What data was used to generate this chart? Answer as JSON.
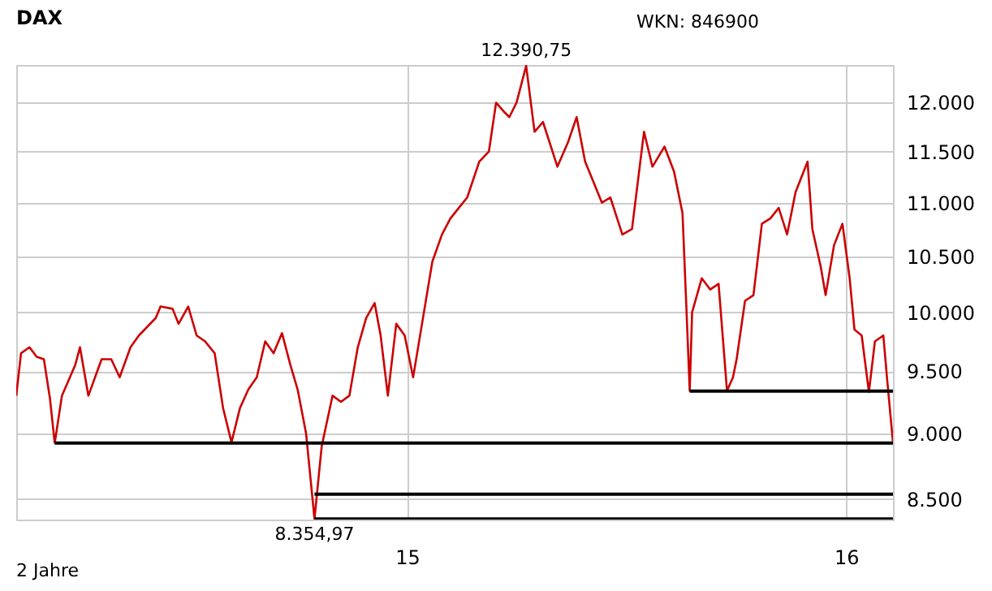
{
  "chart_data": {
    "type": "line",
    "title": "DAX",
    "annotations": [
      "WKN: 846900",
      "2 Jahre",
      {
        "text": "12.390,75",
        "x": "2015-04-10",
        "y": 12390.75
      },
      {
        "text": "8.354,97",
        "x": "2014-10-16",
        "y": 8354.97
      }
    ],
    "x": [
      "2014-02-10",
      "2014-02-14",
      "2014-02-21",
      "2014-02-27",
      "2014-03-05",
      "2014-03-10",
      "2014-03-14",
      "2014-03-20",
      "2014-03-31",
      "2014-04-04",
      "2014-04-11",
      "2014-04-22",
      "2014-04-30",
      "2014-05-07",
      "2014-05-16",
      "2014-05-23",
      "2014-06-06",
      "2014-06-10",
      "2014-06-20",
      "2014-06-25",
      "2014-07-03",
      "2014-07-10",
      "2014-07-17",
      "2014-07-25",
      "2014-08-01",
      "2014-08-08",
      "2014-08-15",
      "2014-08-22",
      "2014-08-29",
      "2014-09-05",
      "2014-09-12",
      "2014-09-19",
      "2014-09-26",
      "2014-10-02",
      "2014-10-09",
      "2014-10-16",
      "2014-10-22",
      "2014-10-31",
      "2014-11-07",
      "2014-11-14",
      "2014-11-21",
      "2014-11-28",
      "2014-12-05",
      "2014-12-10",
      "2014-12-16",
      "2014-12-23",
      "2014-12-30",
      "2015-01-06",
      "2015-01-15",
      "2015-01-22",
      "2015-01-30",
      "2015-02-06",
      "2015-02-13",
      "2015-02-20",
      "2015-03-02",
      "2015-03-10",
      "2015-03-16",
      "2015-03-23",
      "2015-03-27",
      "2015-04-02",
      "2015-04-10",
      "2015-04-17",
      "2015-04-24",
      "2015-05-06",
      "2015-05-15",
      "2015-05-22",
      "2015-05-29",
      "2015-06-05",
      "2015-06-12",
      "2015-06-19",
      "2015-06-29",
      "2015-07-07",
      "2015-07-17",
      "2015-07-24",
      "2015-08-03",
      "2015-08-11",
      "2015-08-18",
      "2015-08-21",
      "2015-08-24",
      "2015-08-26",
      "2015-09-03",
      "2015-09-10",
      "2015-09-17",
      "2015-09-24",
      "2015-09-29",
      "2015-10-02",
      "2015-10-09",
      "2015-10-16",
      "2015-10-23",
      "2015-10-30",
      "2015-11-06",
      "2015-11-13",
      "2015-11-20",
      "2015-11-30",
      "2015-12-04",
      "2015-12-11",
      "2015-12-15",
      "2015-12-22",
      "2015-12-29",
      "2016-01-04",
      "2016-01-08",
      "2016-01-14",
      "2016-01-20",
      "2016-01-25",
      "2016-02-01",
      "2016-02-04",
      "2016-02-09"
    ],
    "series": [
      {
        "color": "#cc0000",
        "values": [
          9300,
          9650,
          9700,
          9620,
          9600,
          9280,
          8925,
          9300,
          9550,
          9700,
          9300,
          9600,
          9600,
          9450,
          9700,
          9800,
          9950,
          10050,
          10030,
          9900,
          10050,
          9800,
          9750,
          9650,
          9200,
          8930,
          9200,
          9350,
          9450,
          9750,
          9650,
          9820,
          9550,
          9350,
          9000,
          8354.97,
          8900,
          9300,
          9250,
          9300,
          9700,
          9950,
          10080,
          9800,
          9300,
          9900,
          9800,
          9450,
          10000,
          10450,
          10700,
          10850,
          10950,
          11050,
          11400,
          11500,
          12000,
          11900,
          11850,
          12000,
          12390.75,
          11700,
          11800,
          11350,
          11600,
          11850,
          11400,
          11200,
          11000,
          11050,
          10700,
          10750,
          11700,
          11350,
          11550,
          11300,
          10900,
          10100,
          9340,
          10000,
          10300,
          10200,
          10250,
          9340,
          9450,
          9600,
          10100,
          10150,
          10800,
          10850,
          10950,
          10700,
          11100,
          11400,
          10750,
          10400,
          10150,
          10600,
          10800,
          10300,
          9850,
          9800,
          9330,
          9750,
          9800,
          9450,
          8930
        ]
      },
      {
        "type": "line",
        "color": "#000000",
        "x": [
          "2014-03-14",
          "2016-02-09"
        ],
        "values": [
          8925,
          8925
        ]
      },
      {
        "type": "line",
        "color": "#000000",
        "x": [
          "2014-10-16",
          "2016-02-09"
        ],
        "values": [
          8536,
          8536
        ]
      },
      {
        "type": "line",
        "color": "#000000",
        "x": [
          "2014-10-16",
          "2016-02-09"
        ],
        "values": [
          8354.97,
          8354.97
        ]
      },
      {
        "type": "line",
        "color": "#000000",
        "x": [
          "2015-08-24",
          "2016-02-09"
        ],
        "values": [
          9338,
          9338
        ]
      }
    ],
    "xlim": [
      "2014-02-10",
      "2016-02-09"
    ],
    "xticks": [
      {
        "value": "2015-01-01",
        "label": "15"
      },
      {
        "value": "2016-01-01",
        "label": "16"
      }
    ],
    "ylim": [
      8350,
      12400
    ],
    "log": true,
    "yticks": [
      {
        "value": 8500,
        "label": "8.500"
      },
      {
        "value": 9000,
        "label": "9.000"
      },
      {
        "value": 9500,
        "label": "9.500"
      },
      {
        "value": 10000,
        "label": "10.000"
      },
      {
        "value": 10500,
        "label": "10.500"
      },
      {
        "value": 11000,
        "label": "11.000"
      },
      {
        "value": 11500,
        "label": "11.500"
      },
      {
        "value": 12000,
        "label": "12.000"
      }
    ],
    "grid": true,
    "marker": "none",
    "line_style": "solid"
  }
}
